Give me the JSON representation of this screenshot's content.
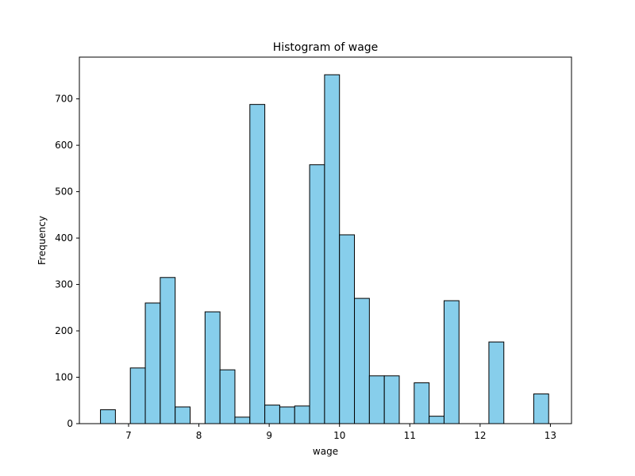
{
  "chart_data": {
    "type": "bar",
    "subtype": "histogram",
    "title": "Histogram of wage",
    "xlabel": "wage",
    "ylabel": "Frequency",
    "xlim": [
      6.3,
      13.3
    ],
    "ylim": [
      0,
      790
    ],
    "x_ticks": [
      7,
      8,
      9,
      10,
      11,
      12,
      13
    ],
    "y_ticks": [
      0,
      100,
      200,
      300,
      400,
      500,
      600,
      700
    ],
    "bin_start": 6.6,
    "bin_width": 0.2125,
    "values": [
      30,
      0,
      120,
      260,
      315,
      36,
      0,
      241,
      116,
      14,
      688,
      40,
      36,
      38,
      558,
      752,
      407,
      270,
      103,
      103,
      0,
      88,
      16,
      265,
      0,
      0,
      176,
      0,
      0,
      64
    ],
    "bar_color": "#87ceeb",
    "edge_color": "#000000",
    "grid": false,
    "legend": "none"
  }
}
